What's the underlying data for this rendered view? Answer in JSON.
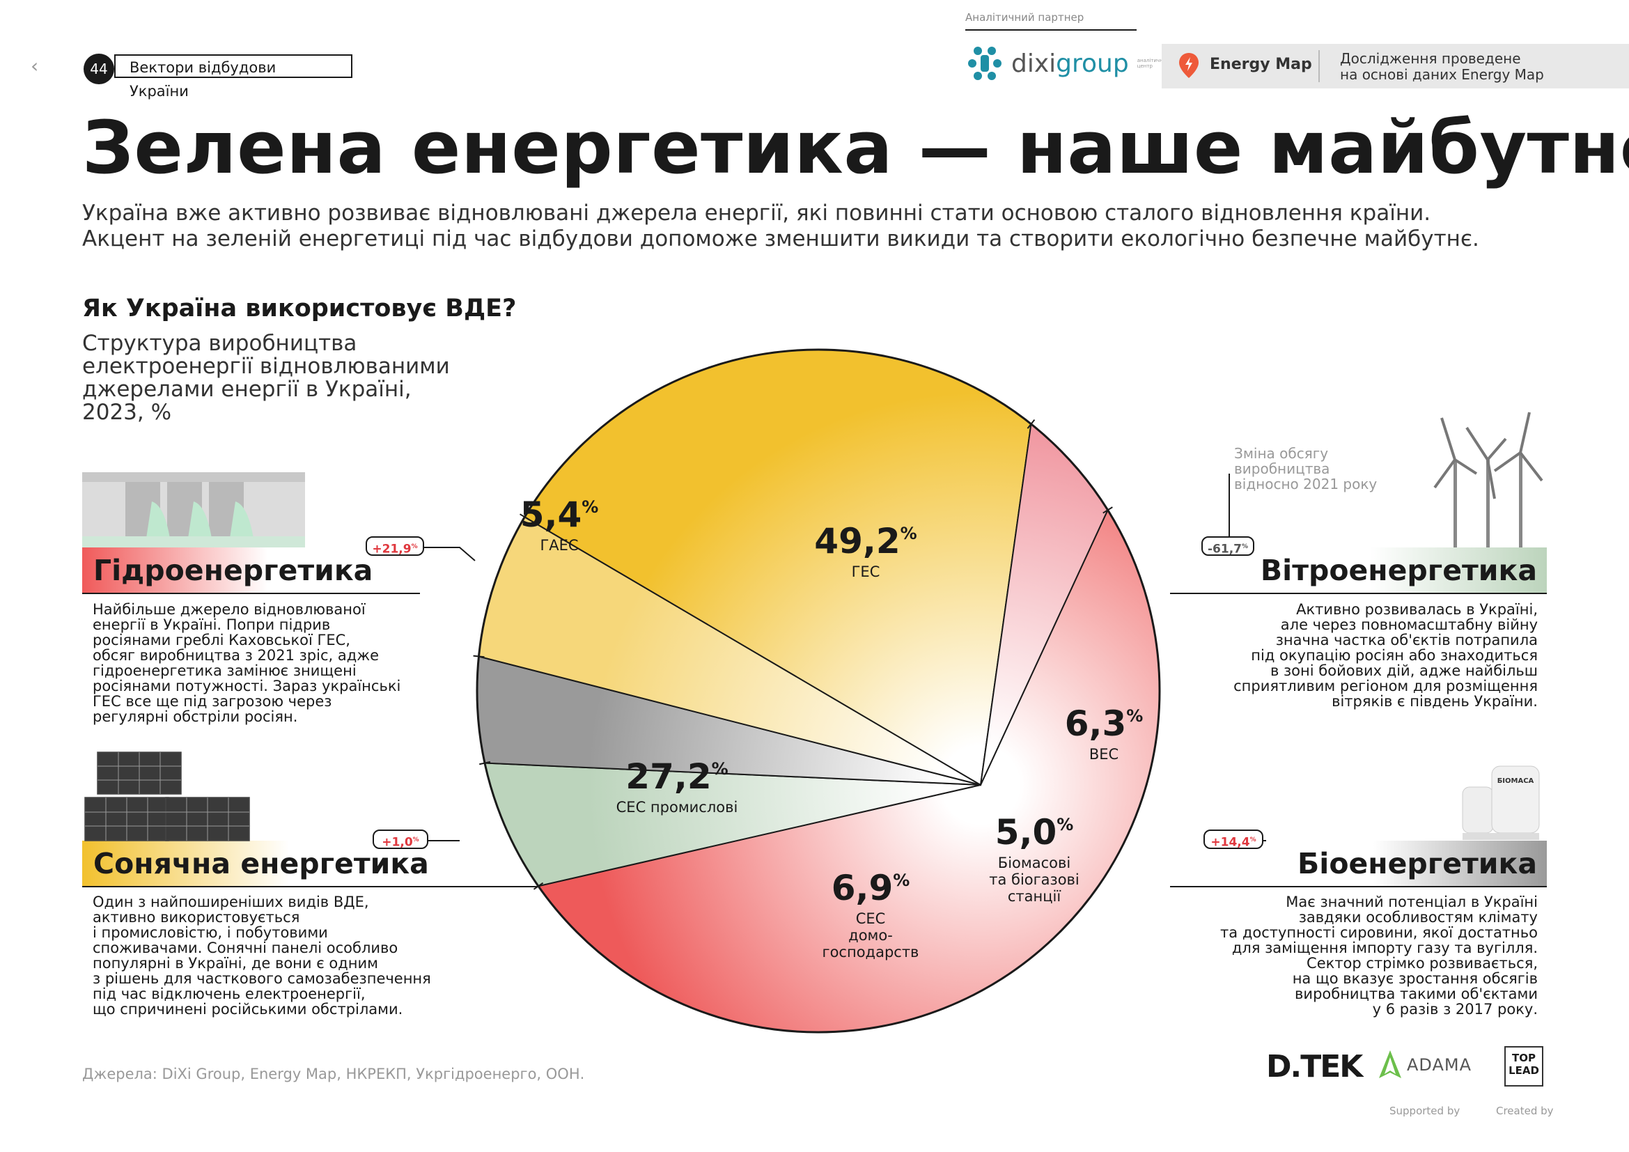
{
  "header": {
    "page_number": "44",
    "page_label": "Вектори відбудови України",
    "partner_label": "Аналітичний партнер",
    "dixi_name": "dixigroup",
    "dixi_tagline": "аналітичний центр",
    "energy_map_name": "Energy Map",
    "energy_map_desc_1": "Дослідження проведене",
    "energy_map_desc_2": "на основі даних Energy Map"
  },
  "title": "Зелена енергетика — наше майбутнє",
  "intro_1": "Україна вже активно розвиває відновлювані джерела енергії, які повинні стати основою сталого відновлення країни.",
  "intro_2": "Акцент на зеленій енергетиці під час відбудови допоможе зменшити викиди та створити екологічно безпечне майбутнє.",
  "question": {
    "title": "Як Україна використовує ВДЕ?",
    "subtitle": "Структура виробництва електроенергії відновлюваними джерелами енергії в Україні, 2023, %"
  },
  "change_note": {
    "line1": "Зміна обсягу",
    "line2": "виробництва",
    "line3": "відносно 2021 року"
  },
  "sections": {
    "hydro": {
      "label": "Гідроенергетика",
      "badge": "+21,9",
      "desc": [
        "Найбільше джерело відновлюваної",
        "енергії в Україні. Попри підрив",
        "росіянами греблі Каховської ГЕС,",
        "обсяг виробництва з 2021 зріс, адже",
        "гідроенергетика замінює знищені",
        "росіянами потужності. Зараз українські",
        "ГЕС все ще під загрозою через",
        "регулярні обстріли росіян."
      ]
    },
    "solar": {
      "label": "Сонячна енергетика",
      "badge": "+1,0",
      "desc": [
        "Один з найпоширеніших видів ВДЕ,",
        "активно використовується",
        "і промисловістю, і побутовими",
        "споживачами. Сонячні панелі особливо",
        "популярні в Україні, де вони є одним",
        "з рішень для часткового самозабезпечення",
        "під час відключень електроенергії,",
        "що спричинені російськими обстрілами."
      ]
    },
    "wind": {
      "label": "Вітроенергетика",
      "badge": "-61,7",
      "desc": [
        "Активно розвивалась в Україні,",
        "але через повномасштабну війну",
        "значна частка об'єктів потрапила",
        "під окупацію росіян або знаходиться",
        "в зоні бойових дій, адже найбільш",
        "сприятливим регіоном для розміщення",
        "вітряків є південь України."
      ]
    },
    "bio": {
      "label": "Біоенергетика",
      "badge": "+14,4",
      "desc": [
        "Має значний потенціал в Україні",
        "завдяки особливостям клімату",
        "та доступності сировини, якої достатньо",
        "для заміщення імпорту газу та вугілля.",
        "Сектор стрімко розвивається,",
        "на що вказує зростання обсягів",
        "виробництва такими об'єктами",
        "у 6 разів з 2017 року."
      ]
    }
  },
  "biomass_tank_label": "БІОМАСА",
  "percent_sign": "%",
  "chart_data": {
    "type": "pie",
    "title": "Структура виробництва електроенергії відновлюваними джерелами енергії в Україні, 2023, %",
    "slices": [
      {
        "name": "ГЕС",
        "value": 49.2,
        "label": "49,2",
        "sublabel": [
          "ГЕС"
        ],
        "color": "#ee5a5a"
      },
      {
        "name": "ВЕС",
        "value": 6.3,
        "label": "6,3",
        "sublabel": [
          "ВЕС"
        ],
        "color": "#bcd4bc"
      },
      {
        "name": "Біомасові та біогазові станції",
        "value": 5.0,
        "label": "5,0",
        "sublabel": [
          "Біомасові",
          "та біогазові",
          "станції"
        ],
        "color": "#9a9a9a"
      },
      {
        "name": "СЕС домогосподарств",
        "value": 6.9,
        "label": "6,9",
        "sublabel": [
          "СЕС",
          "домо-",
          "господарств"
        ],
        "color": "#f6d77a"
      },
      {
        "name": "СЕС промислові",
        "value": 27.2,
        "label": "27,2",
        "sublabel": [
          "СЕС промислові"
        ],
        "color": "#f2c12e"
      },
      {
        "name": "ГАЕС",
        "value": 5.4,
        "label": "5,4",
        "sublabel": [
          "ГАЕС"
        ],
        "color": "#ef8d97"
      }
    ]
  },
  "footer": {
    "source": "Джерела: DiXi Group, Energy Map, НКРЕКП, Укргідроенерго, ООН.",
    "dtek": "D.TEK",
    "adama": "ADAMA",
    "toplead_1": "TOP",
    "toplead_2": "LEAD",
    "supported_by": "Supported by",
    "created_by": "Created by"
  }
}
